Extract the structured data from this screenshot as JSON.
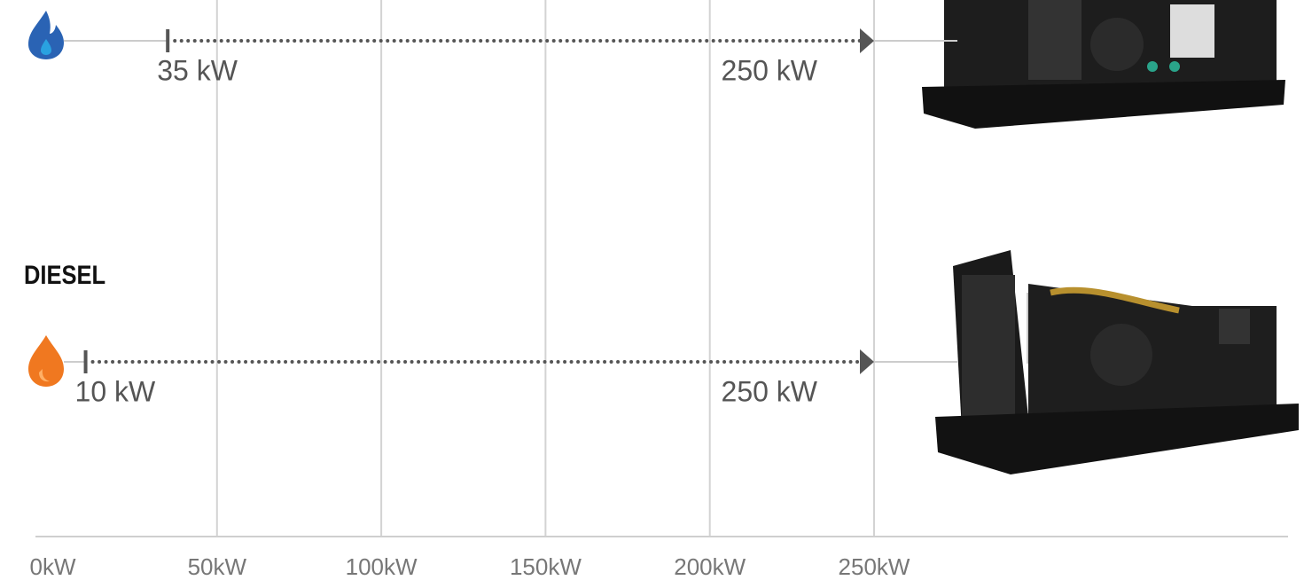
{
  "chart_data": {
    "type": "range",
    "series": [
      {
        "values": [
          35,
          250
        ],
        "value_labels": [
          "35 kW",
          "250 kW"
        ],
        "color": "#2a63b4"
      },
      {
        "name": "DIESEL",
        "values": [
          10,
          250
        ],
        "value_labels": [
          "10 kW",
          "250 kW"
        ],
        "color": "#f07820"
      }
    ],
    "xlim": [
      0,
      250
    ],
    "xticks": [
      {
        "value": 0,
        "label": "0kW"
      },
      {
        "value": 50,
        "label": "50kW"
      },
      {
        "value": 100,
        "label": "100kW"
      },
      {
        "value": 150,
        "label": "150kW"
      },
      {
        "value": 200,
        "label": "200kW"
      },
      {
        "value": 250,
        "label": "250kW"
      }
    ],
    "grid": true
  }
}
